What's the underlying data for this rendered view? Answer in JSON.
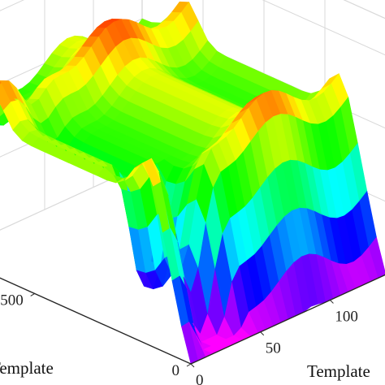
{
  "chart_data": {
    "type": "surface",
    "title": "",
    "colormap": "hsv",
    "grid": true,
    "x_axis": {
      "label": "Template",
      "ticks": [
        0,
        50,
        100
      ],
      "tick_labels": [
        "0",
        "50",
        "100"
      ]
    },
    "y_axis": {
      "label": "Template",
      "ticks": [
        0,
        500
      ],
      "tick_labels": [
        "0",
        "500"
      ]
    },
    "z_axis": {
      "label": "",
      "ticks": [],
      "tick_labels": []
    },
    "colors": {
      "pane_line": "#d9d9d9",
      "axis_line": "#262626",
      "background": "#ffffff"
    }
  }
}
